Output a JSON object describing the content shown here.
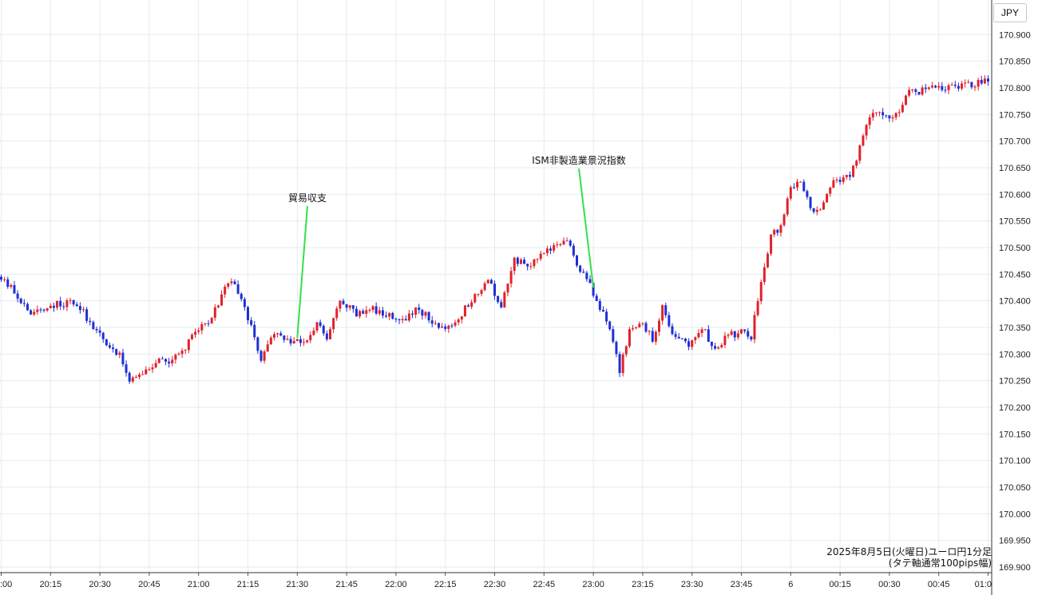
{
  "currency": "JPY",
  "caption": {
    "line1": "2025年8月5日(火曜日)ユーロ円1分足",
    "line2": "(タテ軸通常100pips幅)"
  },
  "colors": {
    "up": "#e0222a",
    "down": "#1f2fd6",
    "annotation": "#33e04a",
    "grid": "#e6ebf1"
  },
  "chart_data": {
    "type": "candlestick",
    "y_axis": {
      "min": 169.9,
      "max": 170.9,
      "step": 0.05,
      "decimals": 3
    },
    "x_ticks": [
      ":00",
      "20:15",
      "20:30",
      "20:45",
      "21:00",
      "21:15",
      "21:30",
      "21:45",
      "22:00",
      "22:15",
      "22:30",
      "22:45",
      "23:00",
      "23:15",
      "23:30",
      "23:45",
      "6",
      "00:15",
      "00:30",
      "00:45",
      "01:0"
    ],
    "x_tick_minute": [
      0,
      15,
      30,
      45,
      60,
      75,
      90,
      105,
      120,
      135,
      150,
      165,
      180,
      195,
      210,
      225,
      240,
      255,
      270,
      285,
      300
    ],
    "annotations": [
      {
        "label": "貿易収支",
        "minute": 90,
        "price": 170.33
      },
      {
        "label": "ISM非製造業景況指数",
        "minute": 180,
        "price": 170.425
      }
    ],
    "keypoints": [
      [
        0,
        170.445
      ],
      [
        5,
        170.42
      ],
      [
        10,
        170.375
      ],
      [
        15,
        170.39
      ],
      [
        20,
        170.395
      ],
      [
        24,
        170.395
      ],
      [
        28,
        170.36
      ],
      [
        32,
        170.325
      ],
      [
        37,
        170.3
      ],
      [
        40,
        170.25
      ],
      [
        44,
        170.26
      ],
      [
        48,
        170.285
      ],
      [
        52,
        170.285
      ],
      [
        56,
        170.3
      ],
      [
        60,
        170.345
      ],
      [
        64,
        170.36
      ],
      [
        67,
        170.395
      ],
      [
        70,
        170.44
      ],
      [
        74,
        170.41
      ],
      [
        78,
        170.33
      ],
      [
        80,
        170.29
      ],
      [
        84,
        170.34
      ],
      [
        88,
        170.325
      ],
      [
        90,
        170.32
      ],
      [
        94,
        170.33
      ],
      [
        97,
        170.36
      ],
      [
        100,
        170.33
      ],
      [
        104,
        170.4
      ],
      [
        109,
        170.375
      ],
      [
        114,
        170.385
      ],
      [
        118,
        170.375
      ],
      [
        123,
        170.365
      ],
      [
        128,
        170.385
      ],
      [
        132,
        170.36
      ],
      [
        136,
        170.345
      ],
      [
        140,
        170.37
      ],
      [
        144,
        170.4
      ],
      [
        149,
        170.44
      ],
      [
        153,
        170.39
      ],
      [
        157,
        170.475
      ],
      [
        162,
        170.47
      ],
      [
        166,
        170.495
      ],
      [
        169,
        170.5
      ],
      [
        173,
        170.51
      ],
      [
        176,
        170.47
      ],
      [
        180,
        170.43
      ],
      [
        183,
        170.385
      ],
      [
        186,
        170.35
      ],
      [
        189,
        170.27
      ],
      [
        192,
        170.34
      ],
      [
        196,
        170.36
      ],
      [
        199,
        170.325
      ],
      [
        202,
        170.385
      ],
      [
        206,
        170.33
      ],
      [
        210,
        170.315
      ],
      [
        214,
        170.35
      ],
      [
        218,
        170.31
      ],
      [
        222,
        170.335
      ],
      [
        226,
        170.34
      ],
      [
        229,
        170.33
      ],
      [
        232,
        170.44
      ],
      [
        235,
        170.52
      ],
      [
        238,
        170.54
      ],
      [
        241,
        170.61
      ],
      [
        244,
        170.625
      ],
      [
        247,
        170.575
      ],
      [
        250,
        170.57
      ],
      [
        253,
        170.615
      ],
      [
        256,
        170.63
      ],
      [
        259,
        170.63
      ],
      [
        262,
        170.69
      ],
      [
        265,
        170.75
      ],
      [
        268,
        170.755
      ],
      [
        271,
        170.745
      ],
      [
        274,
        170.76
      ],
      [
        277,
        170.79
      ],
      [
        282,
        170.795
      ],
      [
        287,
        170.8
      ],
      [
        292,
        170.805
      ],
      [
        296,
        170.805
      ],
      [
        300,
        170.815
      ]
    ]
  }
}
